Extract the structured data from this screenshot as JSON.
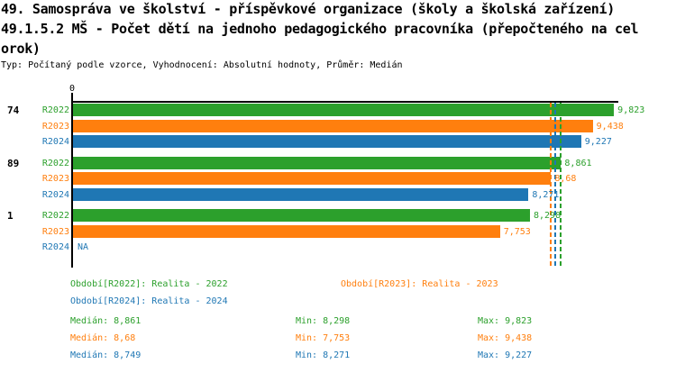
{
  "title": {
    "line1": "49. Samospráva ve školství - příspěvkové organizace (školy a školská zařízení)",
    "line2": "49.1.5.2 MŠ - Počet dětí na jednoho pedagogického pracovníka (přepočteného na cel",
    "line3": "orok)",
    "subtitle": "Typ: Počítaný podle vzorce, Vyhodnocení: Absolutní hodnoty, Průměr: Medián"
  },
  "colors": {
    "R2022": "#2ca02c",
    "R2023": "#ff7f0e",
    "R2024": "#1f77b4",
    "axis": "#000000",
    "background": "#ffffff"
  },
  "chart_data": {
    "type": "bar",
    "orientation": "horizontal",
    "value_axis_position": "top",
    "origin_label": "0",
    "axis_range": [
      0,
      9.9
    ],
    "grid": false,
    "series_names": [
      "R2022",
      "R2023",
      "R2024"
    ],
    "groups": [
      {
        "label": "74",
        "bars": [
          {
            "series": "R2022",
            "value": 9.823,
            "value_label": "9,823"
          },
          {
            "series": "R2023",
            "value": 9.438,
            "value_label": "9,438"
          },
          {
            "series": "R2024",
            "value": 9.227,
            "value_label": "9,227"
          }
        ]
      },
      {
        "label": "89",
        "bars": [
          {
            "series": "R2022",
            "value": 8.861,
            "value_label": "8,861"
          },
          {
            "series": "R2023",
            "value": 8.68,
            "value_label": "8,68"
          },
          {
            "series": "R2024",
            "value": 8.271,
            "value_label": "8,271"
          }
        ]
      },
      {
        "label": "1",
        "bars": [
          {
            "series": "R2022",
            "value": 8.298,
            "value_label": "8,298"
          },
          {
            "series": "R2023",
            "value": 7.753,
            "value_label": "7,753"
          },
          {
            "series": "R2024",
            "value": null,
            "value_label": "NA"
          }
        ]
      }
    ],
    "median_lines": [
      {
        "series": "R2022",
        "value": 8.861
      },
      {
        "series": "R2023",
        "value": 8.68
      },
      {
        "series": "R2024",
        "value": 8.749
      }
    ]
  },
  "legend": {
    "periods": [
      {
        "series": "R2022",
        "label": "Období[R2022]: Realita - 2022"
      },
      {
        "series": "R2023",
        "label": "Období[R2023]: Realita - 2023"
      },
      {
        "series": "R2024",
        "label": "Období[R2024]: Realita - 2024"
      }
    ],
    "stats": [
      {
        "series": "R2022",
        "median": "Medián: 8,861",
        "min": "Min: 8,298",
        "max": "Max: 9,823"
      },
      {
        "series": "R2023",
        "median": "Medián: 8,68",
        "min": "Min: 7,753",
        "max": "Max: 9,438"
      },
      {
        "series": "R2024",
        "median": "Medián: 8,749",
        "min": "Min: 8,271",
        "max": "Max: 9,227"
      }
    ]
  }
}
